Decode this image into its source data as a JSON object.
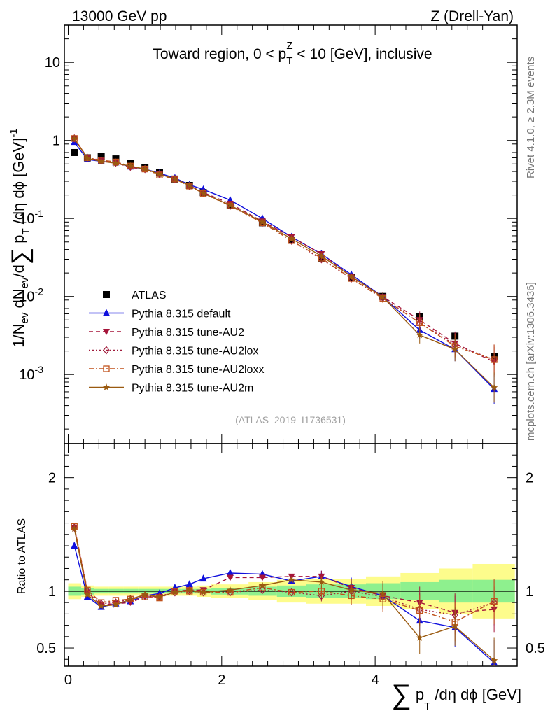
{
  "header": {
    "left": "13000 GeV pp",
    "right": "Z (Drell-Yan)"
  },
  "side_labels": {
    "rivet": "Rivet 4.1.0, ≥ 2.3M events",
    "mcplots": "mcplots.cern.ch [arXiv:1306.3436]"
  },
  "chart_data": [
    {
      "type": "scatter",
      "panel": "main",
      "title": "Toward region, 0 < p_T^Z < 10 [GeV], inclusive",
      "ylabel": "1/N_ev dN_ev/d∑p_T/dη dφ [GeV]^-1",
      "yscale": "log",
      "ylim": [
        0.00013,
        30
      ],
      "xlim": [
        -0.05,
        5.85
      ],
      "watermark": "(ATLAS_2019_I1736531)",
      "y_ticks": [
        {
          "value": 10,
          "base": "10",
          "exp": ""
        },
        {
          "value": 1,
          "base": "1",
          "exp": ""
        },
        {
          "value": 0.1,
          "base": "10",
          "exp": "-1"
        },
        {
          "value": 0.01,
          "base": "10",
          "exp": "-2"
        },
        {
          "value": 0.001,
          "base": "10",
          "exp": "-3"
        }
      ],
      "x": [
        0.08,
        0.25,
        0.43,
        0.62,
        0.81,
        1.0,
        1.19,
        1.39,
        1.58,
        1.76,
        2.11,
        2.53,
        2.91,
        3.3,
        3.69,
        4.1,
        4.58,
        5.04,
        5.55
      ],
      "series": [
        {
          "name": "ATLAS",
          "values": [
            0.7,
            0.6,
            0.63,
            0.58,
            0.51,
            0.45,
            0.39,
            0.32,
            0.265,
            0.215,
            0.148,
            0.088,
            0.053,
            0.031,
            0.0177,
            0.01,
            0.0055,
            0.0031,
            0.0017
          ]
        },
        {
          "name": "Pythia 8.315 default",
          "values": [
            0.95,
            0.57,
            0.54,
            0.52,
            0.46,
            0.43,
            0.38,
            0.33,
            0.27,
            0.235,
            0.172,
            0.1,
            0.058,
            0.035,
            0.019,
            0.0099,
            0.0037,
            0.0021,
            0.00065
          ]
        },
        {
          "name": "Pythia 8.315 tune-AU2",
          "values": [
            1.06,
            0.6,
            0.55,
            0.52,
            0.45,
            0.43,
            0.37,
            0.32,
            0.265,
            0.215,
            0.155,
            0.092,
            0.058,
            0.035,
            0.018,
            0.0099,
            0.005,
            0.0025,
            0.00145
          ]
        },
        {
          "name": "Pythia 8.315 tune-AU2lox",
          "values": [
            1.06,
            0.6,
            0.55,
            0.52,
            0.46,
            0.43,
            0.37,
            0.32,
            0.26,
            0.212,
            0.145,
            0.088,
            0.052,
            0.03,
            0.017,
            0.0096,
            0.0046,
            0.0024,
            0.00155
          ]
        },
        {
          "name": "Pythia 8.315 tune-AU2loxx",
          "values": [
            1.06,
            0.6,
            0.56,
            0.53,
            0.47,
            0.43,
            0.36,
            0.32,
            0.26,
            0.21,
            0.145,
            0.088,
            0.052,
            0.031,
            0.017,
            0.0094,
            0.0046,
            0.0023,
            0.00155
          ]
        },
        {
          "name": "Pythia 8.315 tune-AU2m",
          "values": [
            1.05,
            0.59,
            0.54,
            0.51,
            0.47,
            0.43,
            0.37,
            0.32,
            0.265,
            0.21,
            0.148,
            0.09,
            0.055,
            0.033,
            0.018,
            0.0098,
            0.0032,
            0.0021,
            0.00068
          ]
        }
      ],
      "legend": [
        {
          "name": "ATLAS",
          "color": "#000000"
        },
        {
          "name": "Pythia 8.315 default",
          "color": "#1010dd"
        },
        {
          "name": "Pythia 8.315 tune-AU2",
          "color": "#a5153a"
        },
        {
          "name": "Pythia 8.315 tune-AU2lox",
          "color": "#a01c3c"
        },
        {
          "name": "Pythia 8.315 tune-AU2loxx",
          "color": "#c0501a"
        },
        {
          "name": "Pythia 8.315 tune-AU2m",
          "color": "#9a5a10"
        }
      ]
    },
    {
      "type": "line",
      "panel": "ratio",
      "ylabel": "Ratio to ATLAS",
      "xlabel": "∑p_T/dη dφ [GeV]",
      "ylim": [
        0.34,
        2.3
      ],
      "xlim": [
        -0.05,
        5.85
      ],
      "y_ticks": [
        0.5,
        1,
        2
      ],
      "x_ticks": [
        0,
        2,
        4
      ],
      "band_edges": [
        0,
        0.17,
        0.34,
        0.53,
        0.72,
        0.91,
        1.1,
        1.29,
        1.48,
        1.68,
        1.86,
        2.35,
        2.72,
        3.1,
        3.5,
        3.88,
        4.33,
        4.83,
        5.27,
        5.82
      ],
      "band_green": [
        0.04,
        0.03,
        0.02,
        0.02,
        0.02,
        0.02,
        0.02,
        0.02,
        0.02,
        0.02,
        0.03,
        0.04,
        0.05,
        0.06,
        0.06,
        0.07,
        0.08,
        0.1,
        0.1
      ],
      "band_yellow": [
        0.07,
        0.05,
        0.04,
        0.04,
        0.04,
        0.04,
        0.04,
        0.04,
        0.04,
        0.05,
        0.06,
        0.08,
        0.1,
        0.11,
        0.11,
        0.13,
        0.16,
        0.2,
        0.24
      ],
      "x": [
        0.08,
        0.25,
        0.43,
        0.62,
        0.81,
        1.0,
        1.19,
        1.39,
        1.58,
        1.76,
        2.11,
        2.53,
        2.91,
        3.3,
        3.69,
        4.1,
        4.58,
        5.04,
        5.55
      ],
      "series": [
        {
          "name": "Pythia 8.315 default",
          "values": [
            1.4,
            0.95,
            0.86,
            0.89,
            0.91,
            0.96,
            0.98,
            1.03,
            1.06,
            1.11,
            1.16,
            1.15,
            1.09,
            1.13,
            1.04,
            0.96,
            0.74,
            0.68,
            0.37
          ]
        },
        {
          "name": "Pythia 8.315 tune-AU2",
          "values": [
            1.56,
            0.99,
            0.88,
            0.89,
            0.9,
            0.95,
            0.95,
            1.0,
            1.01,
            1.01,
            1.12,
            1.12,
            1.13,
            1.13,
            1.03,
            0.96,
            0.9,
            0.81,
            0.84
          ]
        },
        {
          "name": "Pythia 8.315 tune-AU2lox",
          "values": [
            1.56,
            1.0,
            0.89,
            0.9,
            0.93,
            0.96,
            0.95,
            0.99,
            1.0,
            0.99,
            0.99,
            1.01,
            0.99,
            0.96,
            1.0,
            0.95,
            0.84,
            0.79,
            0.9
          ]
        },
        {
          "name": "Pythia 8.315 tune-AU2loxx",
          "values": [
            1.57,
            1.01,
            0.9,
            0.92,
            0.93,
            0.95,
            0.94,
            1.0,
            1.0,
            0.99,
            0.99,
            1.03,
            0.99,
            1.0,
            0.96,
            0.93,
            0.83,
            0.73,
            0.91
          ]
        },
        {
          "name": "Pythia 8.315 tune-AU2m",
          "values": [
            1.55,
            0.97,
            0.87,
            0.88,
            0.93,
            0.97,
            0.95,
            0.99,
            1.01,
            0.99,
            1.01,
            1.05,
            1.1,
            1.08,
            1.01,
            0.98,
            0.59,
            0.69,
            0.39
          ]
        }
      ]
    }
  ]
}
